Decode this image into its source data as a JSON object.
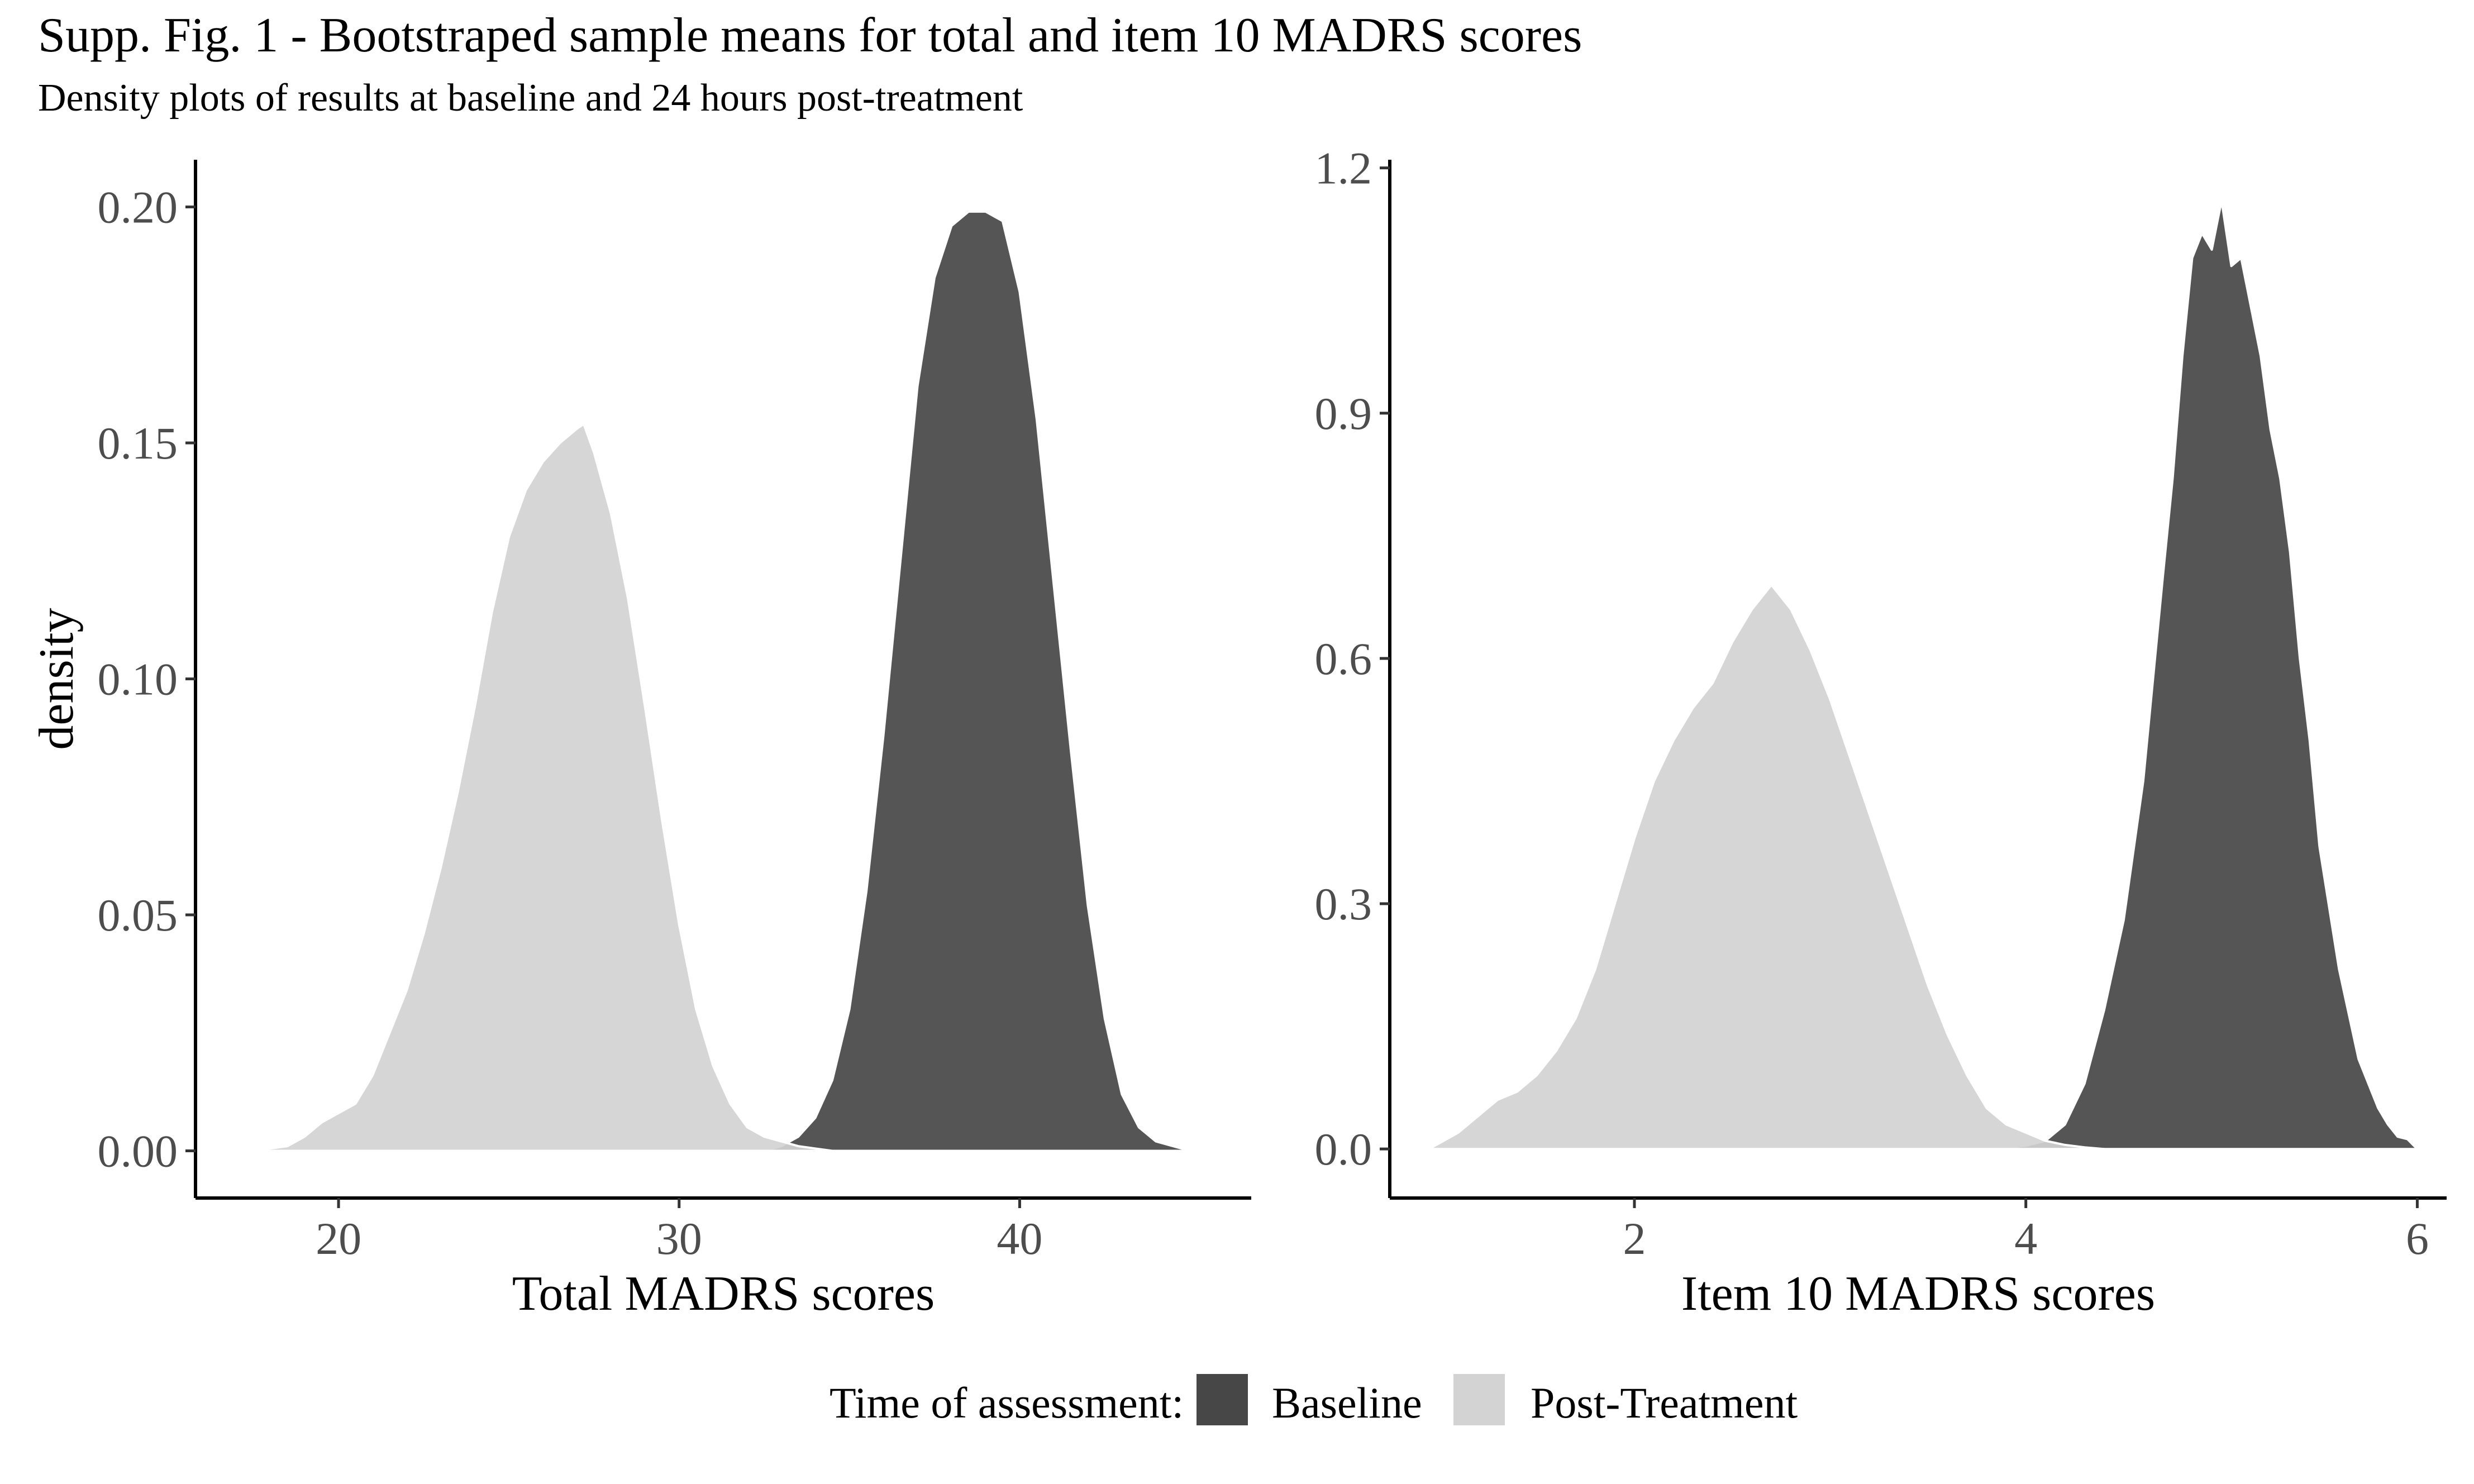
{
  "title": "Supp. Fig. 1 - Bootstraped sample means for total and item 10 MADRS scores",
  "subtitle": "Density plots of results at baseline and 24 hours post-treatment",
  "legend": {
    "title": "Time of assessment:",
    "placement": "bottom",
    "items": [
      {
        "label": "Baseline",
        "color": "#474747"
      },
      {
        "label": "Post-Treatment",
        "color": "#d3d3d3"
      }
    ]
  },
  "chart_data": [
    {
      "type": "area",
      "subtype": "density",
      "xlabel": "Total MADRS scores",
      "ylabel": "density",
      "xlim": [
        15.8,
        46.8
      ],
      "ylim": [
        -0.01,
        0.21
      ],
      "xticks": [
        20,
        30,
        40
      ],
      "xtick_labels": [
        "20",
        "30",
        "40"
      ],
      "yticks": [
        0,
        0.05,
        0.1,
        0.15,
        0.2
      ],
      "ytick_labels": [
        "0.00",
        "0.05",
        "0.10",
        "0.15",
        "0.20"
      ],
      "grid": false,
      "series": [
        {
          "name": "Baseline",
          "color": "#474747",
          "x": [
            32.5,
            33.0,
            33.5,
            34.0,
            34.5,
            35.0,
            35.5,
            36.0,
            36.5,
            37.0,
            37.5,
            38.0,
            38.5,
            39.0,
            39.5,
            40.0,
            40.5,
            41.0,
            41.5,
            42.0,
            42.5,
            43.0,
            43.5,
            44.0,
            44.5,
            45.0
          ],
          "y": [
            0.0,
            0.001,
            0.003,
            0.007,
            0.015,
            0.03,
            0.055,
            0.088,
            0.125,
            0.162,
            0.185,
            0.196,
            0.199,
            0.199,
            0.197,
            0.182,
            0.155,
            0.12,
            0.085,
            0.052,
            0.028,
            0.012,
            0.005,
            0.002,
            0.001,
            0.0
          ]
        },
        {
          "name": "Post-Treatment",
          "color": "#d3d3d3",
          "x": [
            17.5,
            18.5,
            19.0,
            19.5,
            20.0,
            20.5,
            21.0,
            21.5,
            22.0,
            22.5,
            23.0,
            23.5,
            24.0,
            24.5,
            25.0,
            25.5,
            26.0,
            26.5,
            27.0,
            27.2,
            27.5,
            28.0,
            28.5,
            29.0,
            29.5,
            30.0,
            30.5,
            31.0,
            31.5,
            32.0,
            32.5,
            33.0,
            33.5,
            34.0,
            34.5
          ],
          "y": [
            0.0,
            0.001,
            0.003,
            0.006,
            0.008,
            0.01,
            0.016,
            0.025,
            0.034,
            0.046,
            0.06,
            0.076,
            0.094,
            0.114,
            0.13,
            0.14,
            0.146,
            0.15,
            0.153,
            0.154,
            0.148,
            0.135,
            0.117,
            0.094,
            0.07,
            0.048,
            0.03,
            0.018,
            0.01,
            0.005,
            0.003,
            0.002,
            0.001,
            0.0005,
            0.0
          ]
        }
      ]
    },
    {
      "type": "area",
      "subtype": "density",
      "xlabel": "Item 10 MADRS scores",
      "ylabel": "",
      "xlim": [
        0.75,
        6.15
      ],
      "ylim": [
        -0.06,
        1.21
      ],
      "xticks": [
        2,
        4,
        6
      ],
      "xtick_labels": [
        "2",
        "4",
        "6"
      ],
      "yticks": [
        0,
        0.3,
        0.6,
        0.9,
        1.2
      ],
      "ytick_labels": [
        "0.0",
        "0.3",
        "0.6",
        "0.9",
        "1.2"
      ],
      "grid": false,
      "series": [
        {
          "name": "Baseline",
          "color": "#474747",
          "x": [
            3.85,
            4.0,
            4.1,
            4.2,
            4.3,
            4.4,
            4.5,
            4.6,
            4.7,
            4.75,
            4.8,
            4.85,
            4.9,
            4.95,
            5.0,
            5.05,
            5.1,
            5.15,
            5.2,
            5.25,
            5.3,
            5.35,
            5.4,
            5.45,
            5.5,
            5.6,
            5.7,
            5.8,
            5.85,
            5.9,
            5.95,
            6.0
          ],
          "y": [
            0.0,
            0.004,
            0.01,
            0.03,
            0.08,
            0.17,
            0.28,
            0.45,
            0.7,
            0.82,
            0.97,
            1.09,
            1.12,
            1.1,
            1.16,
            1.08,
            1.09,
            1.03,
            0.97,
            0.88,
            0.82,
            0.73,
            0.6,
            0.5,
            0.37,
            0.22,
            0.11,
            0.05,
            0.03,
            0.015,
            0.012,
            0.0
          ]
        },
        {
          "name": "Post-Treatment",
          "color": "#d3d3d3",
          "x": [
            0.95,
            1.1,
            1.2,
            1.3,
            1.4,
            1.5,
            1.6,
            1.7,
            1.8,
            1.9,
            2.0,
            2.1,
            2.2,
            2.3,
            2.4,
            2.5,
            2.6,
            2.7,
            2.8,
            2.9,
            3.0,
            3.1,
            3.2,
            3.3,
            3.4,
            3.5,
            3.6,
            3.7,
            3.8,
            3.9,
            4.0,
            4.1,
            4.2,
            4.3,
            4.4
          ],
          "y": [
            0.0,
            0.02,
            0.04,
            0.06,
            0.07,
            0.09,
            0.12,
            0.16,
            0.22,
            0.3,
            0.38,
            0.45,
            0.5,
            0.54,
            0.57,
            0.62,
            0.66,
            0.69,
            0.66,
            0.61,
            0.55,
            0.48,
            0.41,
            0.34,
            0.27,
            0.2,
            0.14,
            0.09,
            0.05,
            0.03,
            0.02,
            0.01,
            0.005,
            0.002,
            0.0
          ]
        }
      ]
    }
  ]
}
